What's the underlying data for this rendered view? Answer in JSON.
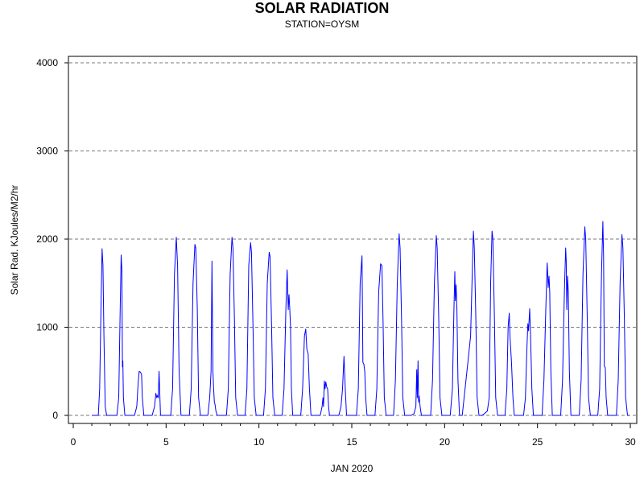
{
  "chart_data": {
    "type": "line",
    "title": "SOLAR RADIATION",
    "subtitle": "STATION=OYSM",
    "xlabel": "JAN 2020",
    "ylabel": "Solar Rad. KJoules/M2/hr",
    "xlim": [
      0,
      30
    ],
    "ylim": [
      0,
      4000
    ],
    "xticks": [
      0,
      5,
      10,
      15,
      20,
      25,
      30
    ],
    "yticks": [
      0,
      1000,
      2000,
      3000,
      4000
    ],
    "grid": "horizontal dashed",
    "line_color": "#0000ff",
    "series": [
      {
        "values": [
          [
            1.0,
            0
          ],
          [
            1.35,
            0
          ],
          [
            1.42,
            300
          ],
          [
            1.5,
            1300
          ],
          [
            1.55,
            1890
          ],
          [
            1.6,
            1700
          ],
          [
            1.65,
            900
          ],
          [
            1.72,
            100
          ],
          [
            1.8,
            0
          ],
          [
            2.35,
            0
          ],
          [
            2.45,
            200
          ],
          [
            2.52,
            1100
          ],
          [
            2.58,
            1820
          ],
          [
            2.62,
            1650
          ],
          [
            2.65,
            550
          ],
          [
            2.67,
            620
          ],
          [
            2.7,
            200
          ],
          [
            2.78,
            0
          ],
          [
            3.3,
            0
          ],
          [
            3.42,
            100
          ],
          [
            3.5,
            380
          ],
          [
            3.55,
            500
          ],
          [
            3.62,
            490
          ],
          [
            3.68,
            460
          ],
          [
            3.72,
            200
          ],
          [
            3.8,
            0
          ],
          [
            4.25,
            0
          ],
          [
            4.38,
            100
          ],
          [
            4.45,
            250
          ],
          [
            4.5,
            200
          ],
          [
            4.55,
            230
          ],
          [
            4.58,
            200
          ],
          [
            4.62,
            500
          ],
          [
            4.65,
            300
          ],
          [
            4.7,
            0
          ],
          [
            5.25,
            0
          ],
          [
            5.35,
            300
          ],
          [
            5.45,
            1600
          ],
          [
            5.55,
            2020
          ],
          [
            5.62,
            1700
          ],
          [
            5.7,
            500
          ],
          [
            5.8,
            0
          ],
          [
            6.25,
            0
          ],
          [
            6.35,
            300
          ],
          [
            6.45,
            1500
          ],
          [
            6.55,
            1940
          ],
          [
            6.6,
            1900
          ],
          [
            6.68,
            1200
          ],
          [
            6.75,
            200
          ],
          [
            6.85,
            0
          ],
          [
            7.25,
            0
          ],
          [
            7.35,
            200
          ],
          [
            7.42,
            500
          ],
          [
            7.47,
            1750
          ],
          [
            7.52,
            500
          ],
          [
            7.56,
            300
          ],
          [
            7.6,
            150
          ],
          [
            7.63,
            130
          ],
          [
            7.68,
            50
          ],
          [
            7.75,
            0
          ],
          [
            8.25,
            0
          ],
          [
            8.35,
            300
          ],
          [
            8.45,
            1600
          ],
          [
            8.55,
            2020
          ],
          [
            8.6,
            1900
          ],
          [
            8.68,
            1100
          ],
          [
            8.75,
            200
          ],
          [
            8.85,
            0
          ],
          [
            9.25,
            0
          ],
          [
            9.35,
            300
          ],
          [
            9.45,
            1700
          ],
          [
            9.55,
            1960
          ],
          [
            9.6,
            1850
          ],
          [
            9.68,
            1000
          ],
          [
            9.75,
            200
          ],
          [
            9.85,
            0
          ],
          [
            10.25,
            0
          ],
          [
            10.35,
            300
          ],
          [
            10.45,
            1500
          ],
          [
            10.55,
            1850
          ],
          [
            10.6,
            1800
          ],
          [
            10.68,
            1000
          ],
          [
            10.75,
            200
          ],
          [
            10.85,
            0
          ],
          [
            11.25,
            0
          ],
          [
            11.35,
            300
          ],
          [
            11.45,
            1200
          ],
          [
            11.52,
            1650
          ],
          [
            11.58,
            1200
          ],
          [
            11.62,
            1370
          ],
          [
            11.66,
            1200
          ],
          [
            11.7,
            1000
          ],
          [
            11.75,
            300
          ],
          [
            11.82,
            0
          ],
          [
            12.25,
            0
          ],
          [
            12.35,
            300
          ],
          [
            12.45,
            900
          ],
          [
            12.52,
            980
          ],
          [
            12.58,
            750
          ],
          [
            12.65,
            700
          ],
          [
            12.72,
            300
          ],
          [
            12.8,
            0
          ],
          [
            13.3,
            0
          ],
          [
            13.4,
            100
          ],
          [
            13.45,
            200
          ],
          [
            13.48,
            100
          ],
          [
            13.52,
            390
          ],
          [
            13.56,
            300
          ],
          [
            13.6,
            380
          ],
          [
            13.65,
            320
          ],
          [
            13.7,
            300
          ],
          [
            13.75,
            100
          ],
          [
            13.8,
            0
          ],
          [
            14.3,
            0
          ],
          [
            14.42,
            100
          ],
          [
            14.5,
            300
          ],
          [
            14.58,
            670
          ],
          [
            14.65,
            300
          ],
          [
            14.72,
            0
          ],
          [
            15.25,
            0
          ],
          [
            15.35,
            300
          ],
          [
            15.45,
            1500
          ],
          [
            15.55,
            1810
          ],
          [
            15.6,
            600
          ],
          [
            15.65,
            580
          ],
          [
            15.7,
            500
          ],
          [
            15.75,
            200
          ],
          [
            15.82,
            0
          ],
          [
            16.25,
            0
          ],
          [
            16.35,
            300
          ],
          [
            16.45,
            1400
          ],
          [
            16.55,
            1720
          ],
          [
            16.62,
            1700
          ],
          [
            16.68,
            1100
          ],
          [
            16.75,
            200
          ],
          [
            16.85,
            0
          ],
          [
            17.25,
            0
          ],
          [
            17.35,
            400
          ],
          [
            17.45,
            1500
          ],
          [
            17.55,
            2060
          ],
          [
            17.6,
            1900
          ],
          [
            17.68,
            1100
          ],
          [
            17.75,
            200
          ],
          [
            17.85,
            0
          ],
          [
            18.2,
            0
          ],
          [
            18.35,
            20
          ],
          [
            18.45,
            100
          ],
          [
            18.5,
            520
          ],
          [
            18.53,
            200
          ],
          [
            18.57,
            620
          ],
          [
            18.6,
            150
          ],
          [
            18.63,
            220
          ],
          [
            18.68,
            100
          ],
          [
            18.75,
            0
          ],
          [
            19.25,
            0
          ],
          [
            19.35,
            400
          ],
          [
            19.45,
            1500
          ],
          [
            19.55,
            2040
          ],
          [
            19.6,
            1900
          ],
          [
            19.68,
            1100
          ],
          [
            19.75,
            200
          ],
          [
            19.85,
            0
          ],
          [
            20.3,
            0
          ],
          [
            20.42,
            300
          ],
          [
            20.5,
            1200
          ],
          [
            20.55,
            1630
          ],
          [
            20.58,
            1300
          ],
          [
            20.62,
            1480
          ],
          [
            20.66,
            1200
          ],
          [
            20.72,
            400
          ],
          [
            20.8,
            0
          ],
          [
            20.95,
            0
          ],
          [
            21.1,
            300
          ],
          [
            21.25,
            600
          ],
          [
            21.4,
            900
          ],
          [
            21.5,
            1700
          ],
          [
            21.55,
            2090
          ],
          [
            21.6,
            1900
          ],
          [
            21.68,
            1100
          ],
          [
            21.75,
            200
          ],
          [
            21.85,
            0
          ],
          [
            22.0,
            0
          ],
          [
            22.15,
            20
          ],
          [
            22.3,
            50
          ],
          [
            22.4,
            200
          ],
          [
            22.48,
            1500
          ],
          [
            22.55,
            2090
          ],
          [
            22.6,
            2000
          ],
          [
            22.68,
            1100
          ],
          [
            22.75,
            200
          ],
          [
            22.85,
            0
          ],
          [
            23.25,
            0
          ],
          [
            23.35,
            300
          ],
          [
            23.42,
            1000
          ],
          [
            23.48,
            1160
          ],
          [
            23.52,
            900
          ],
          [
            23.6,
            600
          ],
          [
            23.68,
            200
          ],
          [
            23.75,
            0
          ],
          [
            24.25,
            0
          ],
          [
            24.35,
            200
          ],
          [
            24.42,
            700
          ],
          [
            24.48,
            1040
          ],
          [
            24.52,
            960
          ],
          [
            24.58,
            1210
          ],
          [
            24.63,
            900
          ],
          [
            24.7,
            300
          ],
          [
            24.78,
            0
          ],
          [
            25.25,
            0
          ],
          [
            25.35,
            400
          ],
          [
            25.45,
            1200
          ],
          [
            25.52,
            1730
          ],
          [
            25.55,
            1600
          ],
          [
            25.58,
            1450
          ],
          [
            25.62,
            1580
          ],
          [
            25.66,
            1400
          ],
          [
            25.72,
            500
          ],
          [
            25.8,
            0
          ],
          [
            26.25,
            0
          ],
          [
            26.35,
            400
          ],
          [
            26.45,
            1400
          ],
          [
            26.52,
            1900
          ],
          [
            26.55,
            1750
          ],
          [
            26.58,
            1200
          ],
          [
            26.62,
            1580
          ],
          [
            26.66,
            1400
          ],
          [
            26.72,
            500
          ],
          [
            26.8,
            0
          ],
          [
            27.25,
            0
          ],
          [
            27.35,
            400
          ],
          [
            27.45,
            1600
          ],
          [
            27.55,
            2140
          ],
          [
            27.6,
            2000
          ],
          [
            27.68,
            1100
          ],
          [
            27.75,
            200
          ],
          [
            27.85,
            0
          ],
          [
            28.25,
            0
          ],
          [
            28.35,
            300
          ],
          [
            28.45,
            1600
          ],
          [
            28.52,
            2200
          ],
          [
            28.56,
            1800
          ],
          [
            28.6,
            560
          ],
          [
            28.65,
            540
          ],
          [
            28.7,
            200
          ],
          [
            28.78,
            0
          ],
          [
            29.25,
            0
          ],
          [
            29.35,
            400
          ],
          [
            29.45,
            1500
          ],
          [
            29.55,
            2050
          ],
          [
            29.6,
            1900
          ],
          [
            29.68,
            1100
          ],
          [
            29.75,
            200
          ],
          [
            29.85,
            0
          ],
          [
            29.95,
            0
          ]
        ]
      }
    ]
  }
}
